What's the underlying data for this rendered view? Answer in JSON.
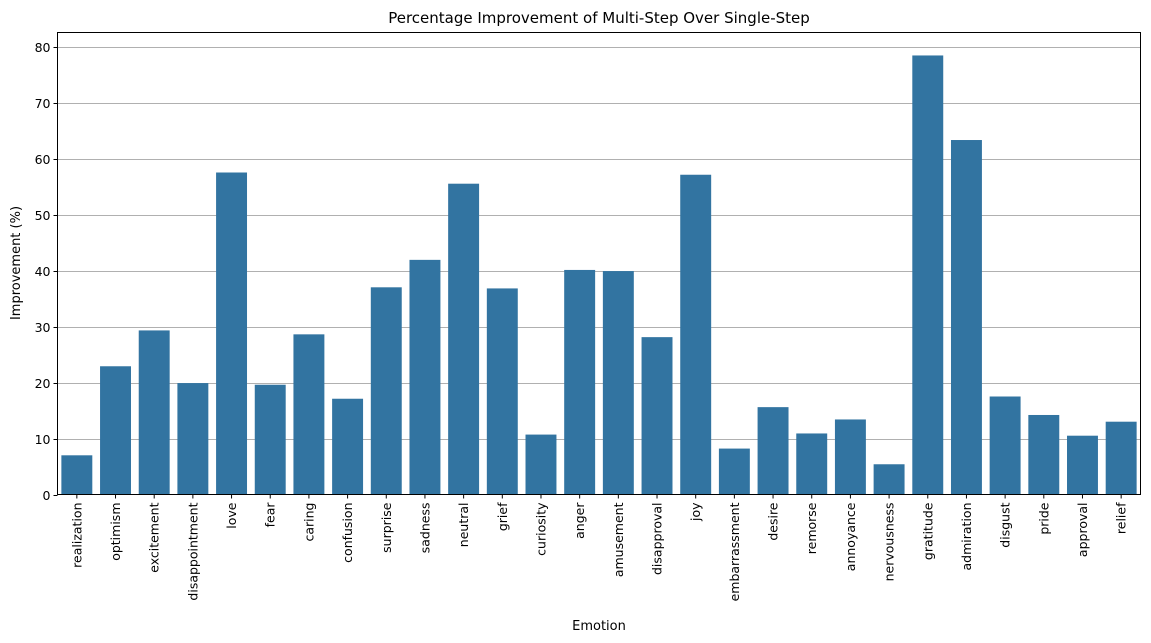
{
  "chart_data": {
    "type": "bar",
    "title": "Percentage Improvement of Multi-Step Over Single-Step",
    "xlabel": "Emotion",
    "ylabel": "Improvement (%)",
    "ylim": [
      0,
      82.5
    ],
    "yticks": [
      0,
      10,
      20,
      30,
      40,
      50,
      60,
      70,
      80
    ],
    "grid": "horizontal",
    "bar_color": "#3274a1",
    "categories": [
      "realization",
      "optimism",
      "excitement",
      "disappointment",
      "love",
      "fear",
      "caring",
      "confusion",
      "surprise",
      "sadness",
      "neutral",
      "grief",
      "curiosity",
      "anger",
      "amusement",
      "disapproval",
      "joy",
      "embarrassment",
      "desire",
      "remorse",
      "annoyance",
      "nervousness",
      "gratitude",
      "admiration",
      "disgust",
      "pride",
      "approval",
      "relief"
    ],
    "values": [
      7.0,
      22.9,
      29.3,
      19.9,
      57.5,
      19.6,
      28.6,
      17.1,
      37.0,
      41.9,
      55.5,
      36.8,
      10.7,
      40.1,
      39.9,
      28.1,
      57.1,
      8.2,
      15.6,
      10.9,
      13.4,
      5.4,
      78.4,
      63.3,
      17.5,
      14.2,
      10.5,
      13.0
    ]
  }
}
